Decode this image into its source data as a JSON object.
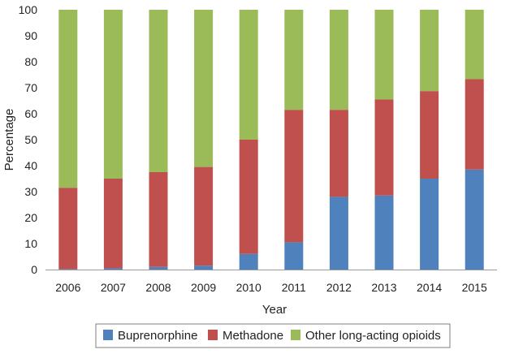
{
  "chart_data": {
    "type": "bar",
    "stacked": true,
    "title": "",
    "xlabel": "Year",
    "ylabel": "Percentage",
    "ylim": [
      0,
      100
    ],
    "yticks": [
      "0",
      "10",
      "20",
      "30",
      "40",
      "50",
      "60",
      "70",
      "80",
      "90",
      "100"
    ],
    "categories": [
      "2006",
      "2007",
      "2008",
      "2009",
      "2010",
      "2011",
      "2012",
      "2013",
      "2014",
      "2015"
    ],
    "series": [
      {
        "name": "Buprenorphine",
        "color": "#4f81bd",
        "values": [
          0.2,
          0.5,
          1.0,
          1.5,
          6.0,
          10.5,
          28.0,
          28.5,
          35.0,
          38.5
        ]
      },
      {
        "name": "Methadone",
        "color": "#c0504d",
        "values": [
          31.3,
          34.5,
          36.5,
          38.0,
          44.0,
          51.0,
          33.5,
          37.0,
          33.7,
          34.8
        ]
      },
      {
        "name": "Other long-acting opioids",
        "color": "#9bbb59",
        "values": [
          68.5,
          65.0,
          62.5,
          60.5,
          50.0,
          38.5,
          38.5,
          34.5,
          31.3,
          26.7
        ]
      }
    ],
    "legend": "bottom-center"
  }
}
